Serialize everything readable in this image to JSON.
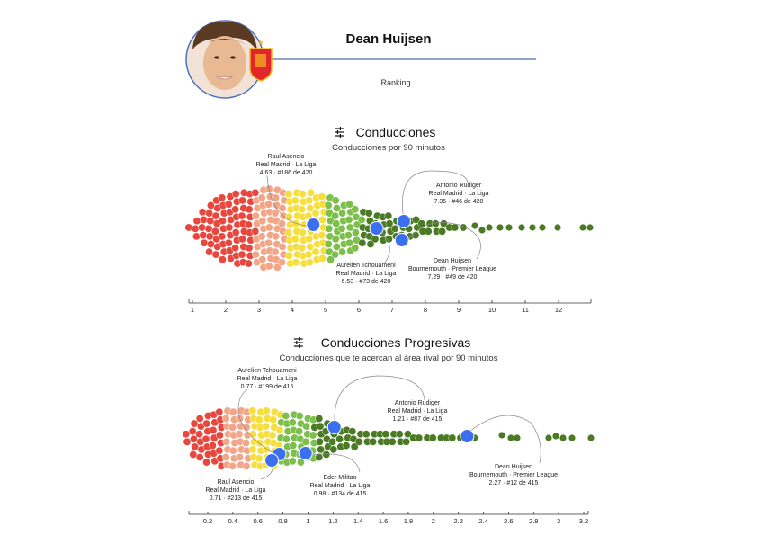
{
  "header": {
    "player_name": "Dean Huijsen",
    "subtitle": "Ranking",
    "accent": "#4a72c4"
  },
  "chart_data": [
    {
      "type": "scatter",
      "subtype": "beeswarm",
      "title": "Conducciones",
      "subtitle": "Conducciones por 90 minutos",
      "xlim": [
        0.9,
        13
      ],
      "ticks": [
        1,
        2,
        3,
        4,
        5,
        6,
        7,
        8,
        9,
        10,
        11,
        12
      ],
      "total": 420,
      "color_bands": [
        {
          "max": 2.9,
          "color": "#e8473d"
        },
        {
          "max": 3.8,
          "color": "#f2a587"
        },
        {
          "max": 5.0,
          "color": "#f6de3e"
        },
        {
          "max": 6.1,
          "color": "#7dbf4b"
        },
        {
          "max": 99,
          "color": "#4a7a24"
        }
      ],
      "highlight_color": "#3b6ff0",
      "highlights": [
        {
          "name": "Raul Asencio",
          "team": "Real Madrid · La Liga",
          "value": 4.63,
          "rank": 186,
          "line": "4.63 · #186 de 420"
        },
        {
          "name": "Aurelien Tchouameni",
          "team": "Real Madrid · La Liga",
          "value": 6.53,
          "rank": 73,
          "line": "6.53 · #73 de 420"
        },
        {
          "name": "Antonio Rudiger",
          "team": "Real Madrid · La Liga",
          "value": 7.35,
          "rank": 46,
          "line": "7.35 · #46 de 420"
        },
        {
          "name": "Dean Huijsen",
          "team": "Bournemouth · Premier League",
          "value": 7.29,
          "rank": 49,
          "line": "7.29 · #49 de 420"
        }
      ]
    },
    {
      "type": "scatter",
      "subtype": "beeswarm",
      "title": "Conducciones Progresivas",
      "subtitle": "Conducciones que te acercan al área rival por 90 minutos",
      "xlim": [
        0.0,
        3.25
      ],
      "ticks": [
        0.2,
        0.4,
        0.6,
        0.8,
        1,
        1.2,
        1.4,
        1.6,
        1.8,
        2,
        2.2,
        2.4,
        2.6,
        2.8,
        3,
        3.2
      ],
      "total": 415,
      "color_bands": [
        {
          "max": 0.33,
          "color": "#e8473d"
        },
        {
          "max": 0.55,
          "color": "#f2a587"
        },
        {
          "max": 0.78,
          "color": "#f6de3e"
        },
        {
          "max": 1.05,
          "color": "#7dbf4b"
        },
        {
          "max": 99,
          "color": "#4a7a24"
        }
      ],
      "highlight_color": "#3b6ff0",
      "highlights": [
        {
          "name": "Aurelien Tchouameni",
          "team": "Real Madrid · La Liga",
          "value": 0.77,
          "rank": 199,
          "line": "0.77 · #199 de 415"
        },
        {
          "name": "Raul Asencio",
          "team": "Real Madrid · La Liga",
          "value": 0.71,
          "rank": 213,
          "line": "0.71 · #213 de 415"
        },
        {
          "name": "Eder Militao",
          "team": "Real Madrid · La Liga",
          "value": 0.98,
          "rank": 134,
          "line": "0.98 · #134 de 415"
        },
        {
          "name": "Antonio Rudiger",
          "team": "Real Madrid · La Liga",
          "value": 1.21,
          "rank": 87,
          "line": "1.21 · #87 de 415"
        },
        {
          "name": "Dean Huijsen",
          "team": "Bournemouth · Premier League",
          "value": 2.27,
          "rank": 12,
          "line": "2.27 · #12 de 415"
        }
      ]
    }
  ]
}
